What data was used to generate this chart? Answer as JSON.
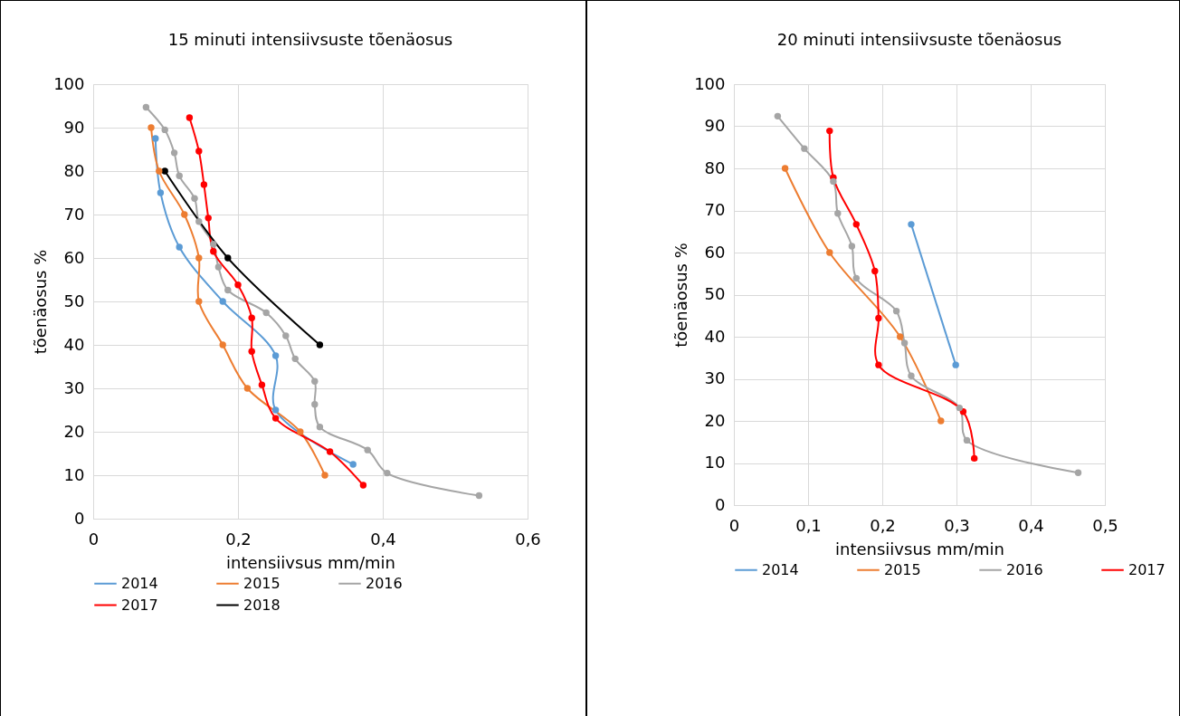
{
  "chart_data": [
    {
      "type": "line",
      "title": "15 minuti intensiivsuste tõenäosus",
      "xlabel": "intensiivsus mm/min",
      "ylabel": "tõenäosus %",
      "xlim": [
        0,
        0.6
      ],
      "xticks": [
        0,
        {
          "value": 0.2,
          "label": "0,2"
        },
        {
          "value": 0.4,
          "label": "0,4"
        },
        {
          "value": 0.6,
          "label": "0,6"
        }
      ],
      "ylim": [
        0,
        100
      ],
      "yticks": [
        0,
        10,
        20,
        30,
        40,
        50,
        60,
        70,
        80,
        90,
        100
      ],
      "grid": true,
      "legend": "bottom",
      "marker": "circle",
      "line_style": "solid",
      "series": [
        {
          "name": "2014",
          "color": "#5b9bd5",
          "x": [
            0.086,
            0.093,
            0.119,
            0.179,
            0.252,
            0.252,
            0.359
          ],
          "values": [
            87.5,
            75,
            62.5,
            50,
            37.5,
            25,
            12.5
          ]
        },
        {
          "name": "2015",
          "color": "#ed7d31",
          "x": [
            0.08,
            0.091,
            0.126,
            0.146,
            0.146,
            0.179,
            0.213,
            0.286,
            0.32
          ],
          "values": [
            90,
            80,
            70,
            60,
            50,
            40,
            30,
            20,
            10
          ]
        },
        {
          "name": "2016",
          "color": "#a5a5a5",
          "x": [
            0.073,
            0.099,
            0.112,
            0.119,
            0.14,
            0.146,
            0.166,
            0.173,
            0.186,
            0.239,
            0.266,
            0.279,
            0.306,
            0.306,
            0.313,
            0.379,
            0.406,
            0.533
          ],
          "values": [
            94.7,
            89.5,
            84.2,
            78.9,
            73.7,
            68.4,
            63.2,
            57.9,
            52.6,
            47.4,
            42.1,
            36.8,
            31.6,
            26.3,
            21.1,
            15.8,
            10.5,
            5.3
          ]
        },
        {
          "name": "2017",
          "color": "#ff0000",
          "x": [
            0.133,
            0.146,
            0.153,
            0.159,
            0.166,
            0.2,
            0.219,
            0.219,
            0.233,
            0.252,
            0.327,
            0.373
          ],
          "values": [
            92.3,
            84.6,
            76.9,
            69.2,
            61.5,
            53.8,
            46.2,
            38.5,
            30.8,
            23.1,
            15.4,
            7.7
          ]
        },
        {
          "name": "2018",
          "color": "#000000",
          "x": [
            0.099,
            0.186,
            0.313
          ],
          "values": [
            80,
            60,
            40
          ]
        }
      ]
    },
    {
      "type": "line",
      "title": "20 minuti intensiivsuste tõenäosus",
      "xlabel": "intensiivsus mm/min",
      "ylabel": "tõenäosus %",
      "xlim": [
        0,
        0.5
      ],
      "xticks": [
        0,
        {
          "value": 0.1,
          "label": "0,1"
        },
        {
          "value": 0.2,
          "label": "0,2"
        },
        {
          "value": 0.3,
          "label": "0,3"
        },
        {
          "value": 0.4,
          "label": "0,4"
        },
        {
          "value": 0.5,
          "label": "0,5"
        }
      ],
      "ylim": [
        0,
        100
      ],
      "yticks": [
        0,
        10,
        20,
        30,
        40,
        50,
        60,
        70,
        80,
        90,
        100
      ],
      "grid": true,
      "legend": "bottom",
      "marker": "circle",
      "line_style": "solid",
      "series": [
        {
          "name": "2014",
          "color": "#5b9bd5",
          "x": [
            0.239,
            0.299
          ],
          "values": [
            66.7,
            33.3
          ]
        },
        {
          "name": "2015",
          "color": "#ed7d31",
          "x": [
            0.069,
            0.129,
            0.224,
            0.279
          ],
          "values": [
            80,
            60,
            40,
            20
          ]
        },
        {
          "name": "2016",
          "color": "#a5a5a5",
          "x": [
            0.059,
            0.095,
            0.134,
            0.14,
            0.159,
            0.165,
            0.219,
            0.23,
            0.239,
            0.304,
            0.314,
            0.464
          ],
          "values": [
            92.4,
            84.7,
            76.9,
            69.3,
            61.5,
            53.9,
            46.1,
            38.5,
            30.7,
            23.1,
            15.4,
            7.7
          ]
        },
        {
          "name": "2017",
          "color": "#ff0000",
          "x": [
            0.129,
            0.134,
            0.165,
            0.19,
            0.195,
            0.195,
            0.309,
            0.324
          ],
          "values": [
            88.9,
            77.8,
            66.7,
            55.6,
            44.4,
            33.3,
            22.2,
            11.1
          ]
        }
      ]
    }
  ]
}
